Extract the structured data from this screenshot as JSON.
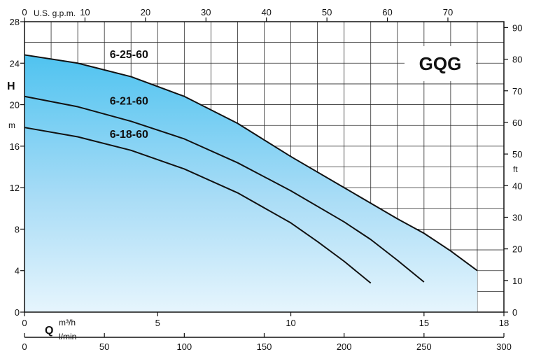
{
  "chart_data": {
    "type": "line",
    "title": "GQG",
    "x_axis": {
      "label": "Q",
      "unit_top": "m³/h",
      "unit_bottom": "l/min",
      "range": [
        0,
        18
      ],
      "ticks": [
        0,
        5,
        10,
        15,
        18
      ]
    },
    "x2_axis": {
      "unit": "l/min",
      "range": [
        0,
        300
      ],
      "ticks": [
        0,
        50,
        100,
        150,
        200,
        250,
        300
      ]
    },
    "x_top_axis": {
      "unit": "U.S. g.p.m.",
      "range": [
        0,
        79.26
      ],
      "ticks": [
        0,
        10,
        20,
        30,
        40,
        50,
        60,
        70
      ]
    },
    "y_axis": {
      "label": "H",
      "unit": "m",
      "range": [
        0,
        28
      ],
      "ticks": [
        0,
        4,
        8,
        12,
        16,
        20,
        24,
        28
      ]
    },
    "y2_axis": {
      "unit": "ft",
      "range": [
        0,
        91.86
      ],
      "ticks": [
        0,
        10,
        20,
        30,
        40,
        50,
        60,
        70,
        80,
        90
      ]
    },
    "grid": true,
    "series": [
      {
        "name": "6-25-60",
        "x": [
          0,
          2,
          4,
          6,
          8,
          10,
          12,
          13,
          14,
          15,
          16,
          17
        ],
        "y": [
          24.8,
          24.0,
          22.7,
          20.8,
          18.2,
          15.0,
          12.0,
          10.5,
          9.0,
          7.6,
          5.9,
          4.0
        ]
      },
      {
        "name": "6-21-60",
        "x": [
          0,
          2,
          4,
          6,
          8,
          10,
          12,
          13,
          14,
          15
        ],
        "y": [
          20.8,
          19.8,
          18.4,
          16.7,
          14.4,
          11.7,
          8.7,
          7.0,
          5.0,
          2.9
        ]
      },
      {
        "name": "6-18-60",
        "x": [
          0,
          2,
          4,
          6,
          8,
          10,
          11,
          12,
          13
        ],
        "y": [
          17.8,
          16.9,
          15.6,
          13.8,
          11.5,
          8.6,
          6.8,
          4.9,
          2.8
        ]
      }
    ]
  }
}
